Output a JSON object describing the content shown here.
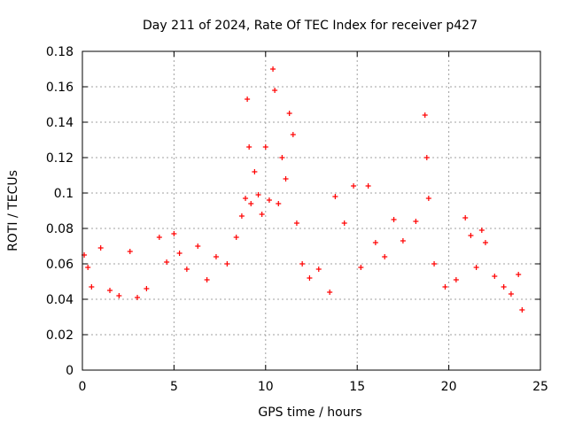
{
  "chart_data": {
    "type": "scatter",
    "title": "Day 211 of 2024, Rate Of TEC Index for receiver p427",
    "xlabel": "GPS time / hours",
    "ylabel": "ROTI / TECUs",
    "xlim": [
      0,
      25
    ],
    "ylim": [
      0,
      0.18
    ],
    "xticks": [
      "0",
      "5",
      "10",
      "15",
      "20",
      "25"
    ],
    "yticks": [
      "0",
      "0.02",
      "0.04",
      "0.06",
      "0.08",
      "0.1",
      "0.12",
      "0.14",
      "0.16",
      "0.18"
    ],
    "grid": true,
    "marker": "+",
    "series_color": "#ff0000",
    "series": [
      {
        "name": "ROTI",
        "x": [
          0.1,
          0.3,
          0.5,
          1.0,
          1.5,
          2.0,
          2.6,
          3.0,
          3.5,
          4.2,
          4.6,
          5.0,
          5.3,
          5.7,
          6.3,
          6.8,
          7.3,
          7.9,
          8.4,
          8.7,
          8.9,
          9.0,
          9.1,
          9.2,
          9.4,
          9.6,
          9.8,
          10.0,
          10.2,
          10.4,
          10.5,
          10.7,
          10.9,
          11.1,
          11.3,
          11.5,
          11.7,
          12.0,
          12.4,
          12.9,
          13.5,
          13.8,
          14.3,
          14.8,
          15.2,
          15.6,
          16.0,
          16.5,
          17.0,
          17.5,
          18.2,
          18.7,
          18.8,
          18.9,
          19.2,
          19.8,
          20.4,
          20.9,
          21.2,
          21.5,
          21.8,
          22.0,
          22.5,
          23.0,
          23.4,
          23.8,
          24.0
        ],
        "y": [
          0.065,
          0.058,
          0.047,
          0.069,
          0.045,
          0.042,
          0.067,
          0.041,
          0.046,
          0.075,
          0.061,
          0.077,
          0.066,
          0.057,
          0.07,
          0.051,
          0.064,
          0.06,
          0.075,
          0.087,
          0.097,
          0.153,
          0.126,
          0.094,
          0.112,
          0.099,
          0.088,
          0.126,
          0.096,
          0.17,
          0.158,
          0.094,
          0.12,
          0.108,
          0.145,
          0.133,
          0.083,
          0.06,
          0.052,
          0.057,
          0.044,
          0.098,
          0.083,
          0.104,
          0.058,
          0.104,
          0.072,
          0.064,
          0.085,
          0.073,
          0.084,
          0.144,
          0.12,
          0.097,
          0.06,
          0.047,
          0.051,
          0.086,
          0.076,
          0.058,
          0.079,
          0.072,
          0.053,
          0.047,
          0.043,
          0.054,
          0.034
        ]
      }
    ]
  }
}
